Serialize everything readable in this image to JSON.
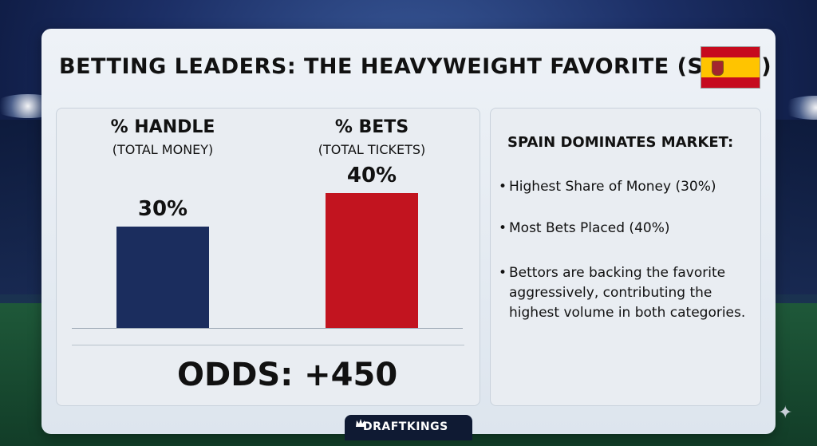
{
  "title": "BETTING LEADERS: THE HEAVYWEIGHT FAVORITE (SPAIN)",
  "chart_data": {
    "type": "bar",
    "categories": [
      "% HANDLE",
      "% BETS"
    ],
    "category_sublabels": [
      "(TOTAL MONEY)",
      "(TOTAL TICKETS)"
    ],
    "values": [
      30,
      40
    ],
    "value_labels": [
      "30%",
      "40%"
    ],
    "colors": [
      "#1b2d5e",
      "#c2141f"
    ],
    "ylim": [
      0,
      62
    ]
  },
  "odds": "ODDS: +450",
  "info": {
    "heading": "SPAIN DOMINATES MARKET:",
    "bullets": [
      "Highest Share of Money (30%)",
      "Most Bets Placed (40%)",
      "Bettors are backing the favorite aggressively, contributing the highest volume in both categories."
    ]
  },
  "brand": "DRAFTKINGS",
  "colors": {
    "accent_red": "#c2141f",
    "accent_navy": "#1b2d5e",
    "panel": "#e9edf2"
  }
}
